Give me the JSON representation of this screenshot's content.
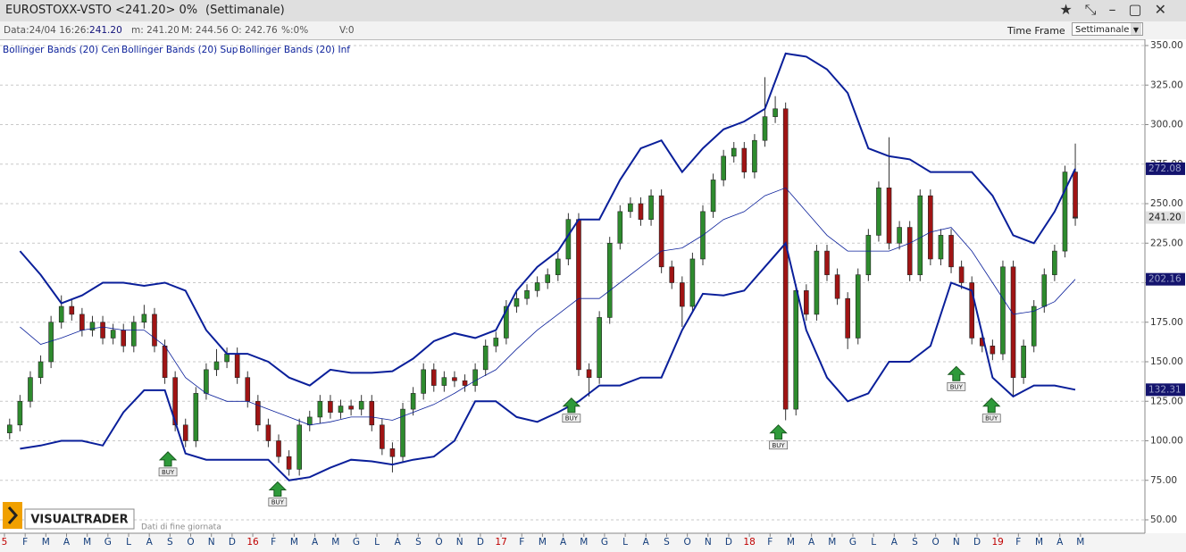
{
  "header": {
    "title": "EUROSTOXX-VSTO <241.20> 0%",
    "timeframe": "(Settimanale)"
  },
  "info": {
    "date": "Data:24/04 16:26:",
    "date_value": "241.20",
    "min": "m: 241.20",
    "max": "M: 244.56",
    "open": "O: 242.76",
    "pct": "%:0%",
    "volume": "V:0",
    "time_frame": "Time Frame",
    "select": "Settimanale"
  },
  "logo": {
    "name": "VISUALTRADER",
    "note": "Dati di fine giornata"
  },
  "chart_data": {
    "type": "candlestick",
    "ylim": [
      40,
      360
    ],
    "yticks": [
      {
        "value": 50,
        "label": "50.00"
      },
      {
        "value": 75,
        "label": "75.00"
      },
      {
        "value": 100,
        "label": "100.00"
      },
      {
        "value": 125,
        "label": "125.00"
      },
      {
        "value": 150,
        "label": "150.00"
      },
      {
        "value": 175,
        "label": "175.00"
      },
      {
        "value": 200,
        "label": "200.00"
      },
      {
        "value": 225,
        "label": "225.00"
      },
      {
        "value": 250,
        "label": "250.00"
      },
      {
        "value": 275,
        "label": "275.00"
      },
      {
        "value": 300,
        "label": "300.00"
      },
      {
        "value": 325,
        "label": "325.00"
      },
      {
        "value": 350,
        "label": "350.00"
      }
    ],
    "grid": true,
    "xlim": [
      0,
      55
    ],
    "xticks": [
      {
        "value": 0,
        "label": "5"
      },
      {
        "value": 1,
        "label": "F"
      },
      {
        "value": 2,
        "label": "M"
      },
      {
        "value": 3,
        "label": "A"
      },
      {
        "value": 4,
        "label": "M"
      },
      {
        "value": 5,
        "label": "G"
      },
      {
        "value": 6,
        "label": "L"
      },
      {
        "value": 7,
        "label": "A"
      },
      {
        "value": 8,
        "label": "S"
      },
      {
        "value": 9,
        "label": "O"
      },
      {
        "value": 10,
        "label": "N"
      },
      {
        "value": 11,
        "label": "D"
      },
      {
        "value": 12,
        "label": "16"
      },
      {
        "value": 13,
        "label": "F"
      },
      {
        "value": 14,
        "label": "M"
      },
      {
        "value": 15,
        "label": "A"
      },
      {
        "value": 16,
        "label": "M"
      },
      {
        "value": 17,
        "label": "G"
      },
      {
        "value": 18,
        "label": "L"
      },
      {
        "value": 19,
        "label": "A"
      },
      {
        "value": 20,
        "label": "S"
      },
      {
        "value": 21,
        "label": "O"
      },
      {
        "value": 22,
        "label": "N"
      },
      {
        "value": 23,
        "label": "D"
      },
      {
        "value": 24,
        "label": "17"
      },
      {
        "value": 25,
        "label": "F"
      },
      {
        "value": 26,
        "label": "M"
      },
      {
        "value": 27,
        "label": "A"
      },
      {
        "value": 28,
        "label": "M"
      },
      {
        "value": 29,
        "label": "G"
      },
      {
        "value": 30,
        "label": "L"
      },
      {
        "value": 31,
        "label": "A"
      },
      {
        "value": 32,
        "label": "S"
      },
      {
        "value": 33,
        "label": "O"
      },
      {
        "value": 34,
        "label": "N"
      },
      {
        "value": 35,
        "label": "D"
      },
      {
        "value": 36,
        "label": "18"
      },
      {
        "value": 37,
        "label": "F"
      },
      {
        "value": 38,
        "label": "M"
      },
      {
        "value": 39,
        "label": "A"
      },
      {
        "value": 40,
        "label": "M"
      },
      {
        "value": 41,
        "label": "G"
      },
      {
        "value": 42,
        "label": "L"
      },
      {
        "value": 43,
        "label": "A"
      },
      {
        "value": 44,
        "label": "S"
      },
      {
        "value": 45,
        "label": "O"
      },
      {
        "value": 46,
        "label": "N"
      },
      {
        "value": 47,
        "label": "D"
      },
      {
        "value": 48,
        "label": "19"
      },
      {
        "value": 49,
        "label": "F"
      },
      {
        "value": 50,
        "label": "M"
      },
      {
        "value": 51,
        "label": "A"
      },
      {
        "value": 52,
        "label": "M"
      }
    ],
    "up_color": "#2e8b2e",
    "down_color": "#a01414",
    "candles": [
      [
        105,
        114,
        101,
        110
      ],
      [
        110,
        129,
        106,
        125
      ],
      [
        125,
        144,
        121,
        140
      ],
      [
        140,
        154,
        136,
        150
      ],
      [
        150,
        179,
        146,
        175
      ],
      [
        175,
        192,
        171,
        185
      ],
      [
        185,
        189,
        176,
        180
      ],
      [
        180,
        184,
        166,
        170
      ],
      [
        170,
        179,
        166,
        175
      ],
      [
        175,
        179,
        161,
        165
      ],
      [
        165,
        174,
        161,
        170
      ],
      [
        170,
        174,
        156,
        160
      ],
      [
        160,
        179,
        156,
        175
      ],
      [
        175,
        186,
        171,
        180
      ],
      [
        180,
        184,
        156,
        160
      ],
      [
        160,
        164,
        136,
        140
      ],
      [
        140,
        144,
        106,
        110
      ],
      [
        110,
        114,
        96,
        100
      ],
      [
        100,
        134,
        96,
        130
      ],
      [
        130,
        149,
        126,
        145
      ],
      [
        145,
        158,
        141,
        150
      ],
      [
        150,
        159,
        146,
        155
      ],
      [
        155,
        159,
        136,
        140
      ],
      [
        140,
        144,
        121,
        125
      ],
      [
        125,
        129,
        106,
        110
      ],
      [
        110,
        114,
        96,
        100
      ],
      [
        100,
        104,
        86,
        90
      ],
      [
        90,
        94,
        78,
        82
      ],
      [
        82,
        114,
        78,
        110
      ],
      [
        110,
        119,
        106,
        115
      ],
      [
        115,
        129,
        111,
        125
      ],
      [
        125,
        129,
        114,
        118
      ],
      [
        118,
        126,
        114,
        122
      ],
      [
        122,
        126,
        116,
        120
      ],
      [
        120,
        129,
        116,
        125
      ],
      [
        125,
        129,
        106,
        110
      ],
      [
        110,
        114,
        91,
        95
      ],
      [
        95,
        99,
        80,
        90
      ],
      [
        90,
        124,
        86,
        120
      ],
      [
        120,
        134,
        116,
        130
      ],
      [
        130,
        149,
        126,
        145
      ],
      [
        145,
        149,
        131,
        135
      ],
      [
        135,
        144,
        131,
        140
      ],
      [
        140,
        144,
        134,
        138
      ],
      [
        138,
        142,
        131,
        135
      ],
      [
        135,
        149,
        131,
        145
      ],
      [
        145,
        164,
        141,
        160
      ],
      [
        160,
        169,
        156,
        165
      ],
      [
        165,
        189,
        161,
        185
      ],
      [
        185,
        194,
        181,
        190
      ],
      [
        190,
        199,
        186,
        195
      ],
      [
        195,
        204,
        191,
        200
      ],
      [
        200,
        209,
        196,
        205
      ],
      [
        205,
        219,
        201,
        215
      ],
      [
        215,
        244,
        211,
        240
      ],
      [
        240,
        244,
        141,
        145
      ],
      [
        145,
        149,
        128,
        140
      ],
      [
        140,
        182,
        136,
        178
      ],
      [
        178,
        229,
        174,
        225
      ],
      [
        225,
        249,
        221,
        245
      ],
      [
        245,
        254,
        241,
        250
      ],
      [
        250,
        254,
        236,
        240
      ],
      [
        240,
        259,
        236,
        255
      ],
      [
        255,
        259,
        206,
        210
      ],
      [
        210,
        214,
        196,
        200
      ],
      [
        200,
        204,
        172,
        185
      ],
      [
        185,
        219,
        181,
        215
      ],
      [
        215,
        249,
        211,
        245
      ],
      [
        245,
        269,
        241,
        265
      ],
      [
        265,
        284,
        261,
        280
      ],
      [
        280,
        289,
        276,
        285
      ],
      [
        285,
        289,
        266,
        270
      ],
      [
        270,
        294,
        266,
        290
      ],
      [
        290,
        330,
        286,
        305
      ],
      [
        305,
        318,
        301,
        310
      ],
      [
        310,
        314,
        113,
        120
      ],
      [
        120,
        199,
        116,
        195
      ],
      [
        195,
        199,
        176,
        180
      ],
      [
        180,
        224,
        176,
        220
      ],
      [
        220,
        224,
        201,
        205
      ],
      [
        205,
        209,
        186,
        190
      ],
      [
        190,
        194,
        158,
        165
      ],
      [
        165,
        209,
        161,
        205
      ],
      [
        205,
        234,
        201,
        230
      ],
      [
        230,
        264,
        226,
        260
      ],
      [
        260,
        292,
        221,
        225
      ],
      [
        225,
        239,
        221,
        235
      ],
      [
        235,
        239,
        201,
        205
      ],
      [
        205,
        259,
        201,
        255
      ],
      [
        255,
        259,
        211,
        215
      ],
      [
        215,
        234,
        211,
        230
      ],
      [
        230,
        234,
        206,
        210
      ],
      [
        210,
        214,
        196,
        200
      ],
      [
        200,
        204,
        161,
        165
      ],
      [
        165,
        169,
        156,
        160
      ],
      [
        160,
        164,
        151,
        155
      ],
      [
        155,
        214,
        151,
        210
      ],
      [
        210,
        214,
        128,
        140
      ],
      [
        140,
        164,
        136,
        160
      ],
      [
        160,
        189,
        156,
        185
      ],
      [
        185,
        209,
        181,
        205
      ],
      [
        205,
        224,
        201,
        220
      ],
      [
        220,
        274,
        216,
        270
      ],
      [
        270,
        288,
        236,
        241.2
      ]
    ],
    "last_price": 241.2,
    "last_price_label": "241.20",
    "series": [
      {
        "name": "Bollinger Bands (20) Cen",
        "color": "#0a1f9a",
        "values": [
          172,
          161,
          165,
          170,
          172,
          170,
          170,
          160,
          140,
          130,
          125,
          125,
          120,
          115,
          110,
          112,
          115,
          115,
          113,
          118,
          123,
          130,
          138,
          145,
          158,
          170,
          180,
          190,
          190,
          200,
          210,
          220,
          222,
          230,
          240,
          245,
          255,
          260,
          245,
          230,
          220,
          220,
          220,
          225,
          232,
          235,
          220,
          200,
          180,
          182,
          188,
          202.16
        ],
        "last_label": "202.16"
      },
      {
        "name": "Bollinger Bands (20) Sup",
        "color": "#0a1f9a",
        "values": [
          220,
          205,
          187,
          192,
          200,
          200,
          198,
          200,
          195,
          170,
          155,
          155,
          150,
          140,
          135,
          145,
          143,
          143,
          144,
          152,
          163,
          168,
          165,
          170,
          195,
          210,
          220,
          240,
          240,
          265,
          285,
          290,
          270,
          285,
          297,
          302,
          310,
          345,
          343,
          335,
          320,
          285,
          280,
          278,
          270,
          270,
          270,
          255,
          230,
          225,
          245,
          272.08
        ],
        "last_label": "272.08"
      },
      {
        "name": "Bollinger Bands (20) Inf",
        "color": "#0a1f9a",
        "values": [
          95,
          97,
          100,
          100,
          97,
          118,
          132,
          132,
          92,
          88,
          88,
          88,
          88,
          75,
          77,
          83,
          88,
          87,
          85,
          88,
          90,
          100,
          125,
          125,
          115,
          112,
          118,
          125,
          135,
          135,
          140,
          140,
          170,
          193,
          192,
          195,
          210,
          225,
          170,
          140,
          125,
          130,
          150,
          150,
          160,
          200,
          195,
          140,
          128,
          135,
          135,
          132.31
        ],
        "last_label": "132.31"
      }
    ],
    "signals": [
      {
        "x": 7.9,
        "y": 93,
        "label": "BUY"
      },
      {
        "x": 13.2,
        "y": 74,
        "label": "BUY"
      },
      {
        "x": 27.4,
        "y": 127,
        "label": "BUY"
      },
      {
        "x": 37.4,
        "y": 110,
        "label": "BUY"
      },
      {
        "x": 46,
        "y": 147,
        "label": "BUY"
      },
      {
        "x": 47.7,
        "y": 127,
        "label": "BUY"
      }
    ]
  }
}
